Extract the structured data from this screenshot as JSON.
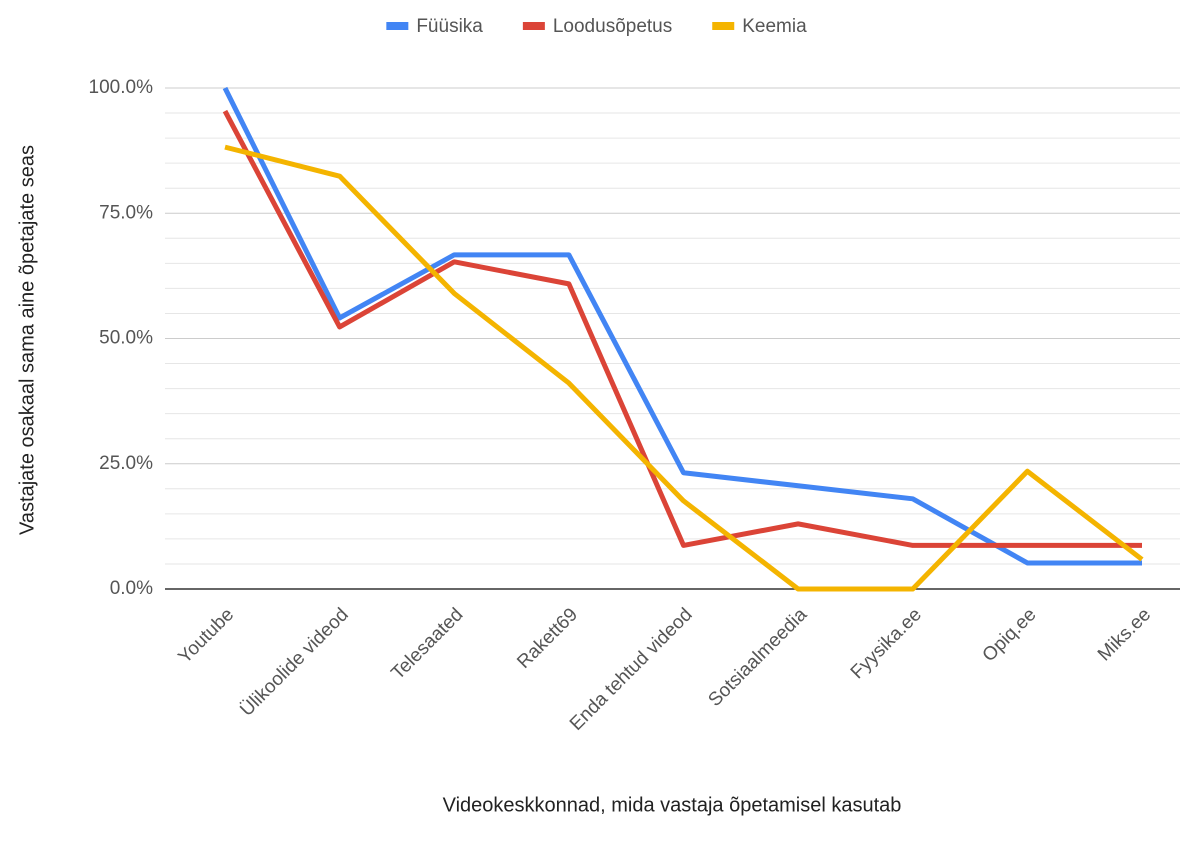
{
  "chart_data": {
    "type": "line",
    "x_label": "Videokeskkonnad, mida vastaja õpetamisel kasutab",
    "y_label": "Vastajate osakaal sama aine õpetajate seas",
    "categories": [
      "Youtube",
      "Ülikoolide videod",
      "Telesaated",
      "Rakett69",
      "Enda tehtud videod",
      "Sotsiaalmeedia",
      "Fyysika.ee",
      "Opiq.ee",
      "Miks.ee"
    ],
    "series": [
      {
        "name": "Füüsika",
        "color": "#4285f4",
        "values": [
          100,
          54.1,
          66.7,
          66.7,
          23.2,
          20.6,
          18,
          5.2,
          5.2
        ]
      },
      {
        "name": "Loodusõpetus",
        "color": "#db4437",
        "values": [
          95.4,
          52.3,
          65.3,
          60.9,
          8.7,
          13,
          8.7,
          8.7,
          8.7
        ]
      },
      {
        "name": "Keemia",
        "color": "#f4b400",
        "values": [
          88.2,
          82.4,
          59,
          41.1,
          17.6,
          0,
          0,
          23.5,
          5.9
        ]
      }
    ],
    "ylim": [
      0,
      100
    ],
    "yticks": [
      {
        "value": 0,
        "label": "0.0%"
      },
      {
        "value": 25,
        "label": "25.0%"
      },
      {
        "value": 50,
        "label": "50.0%"
      },
      {
        "value": 75,
        "label": "75.0%"
      },
      {
        "value": 100,
        "label": "100.0%"
      }
    ],
    "yminor_ticks": [
      5,
      10,
      15,
      20,
      30,
      35,
      40,
      45,
      55,
      60,
      65,
      70,
      80,
      85,
      90,
      95
    ],
    "grid": true,
    "legend": "top"
  }
}
